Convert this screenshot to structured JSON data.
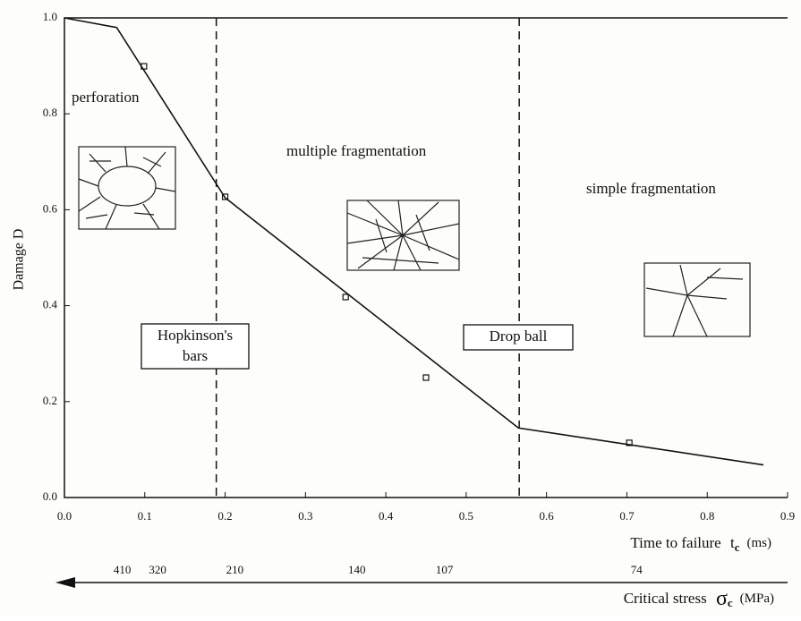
{
  "chart_data": {
    "type": "line",
    "ylabel": "Damage D",
    "xlabel": {
      "text": "Time to failure",
      "symbol": "t",
      "subscript": "c",
      "unit": "(ms)"
    },
    "stress_label": {
      "text": "Critical stress",
      "symbol": "σ",
      "subscript": "c",
      "unit": "(MPa)"
    },
    "xlim": [
      0,
      0.9
    ],
    "ylim": [
      0,
      1
    ],
    "xticks": [
      {
        "value": 0,
        "label": "0.0"
      },
      0.1,
      0.2,
      0.3,
      0.4,
      0.5,
      0.6,
      0.7,
      0.8,
      0.9
    ],
    "yticks": [
      {
        "value": 0,
        "label": "0.0"
      },
      0.2,
      0.4,
      0.6,
      0.8,
      {
        "value": 1,
        "label": "1.0"
      }
    ],
    "stress_ticks": [
      {
        "value": 0.072,
        "label": "410"
      },
      {
        "value": 0.116,
        "label": "320"
      },
      {
        "value": 0.212,
        "label": "210"
      },
      {
        "value": 0.364,
        "label": "140"
      },
      {
        "value": 0.473,
        "label": "107"
      },
      {
        "value": 0.712,
        "label": "74"
      }
    ],
    "line": {
      "color": "#111",
      "x": [
        0,
        0.065,
        0.2,
        0.565,
        0.87
      ],
      "values": [
        1.0,
        0.98,
        0.625,
        0.145,
        0.068
      ]
    },
    "points": {
      "color": "#111",
      "x": [
        0.099,
        0.2,
        0.35,
        0.45,
        0.703
      ],
      "values": [
        0.899,
        0.627,
        0.418,
        0.25,
        0.114
      ]
    },
    "vlines": [
      0.189,
      0.566
    ],
    "annotations": [
      "perforation",
      "multiple fragmentation",
      "simple fragmentation"
    ],
    "boxes": [
      [
        "Hopkinson's",
        "bars"
      ],
      [
        "Drop ball"
      ]
    ]
  }
}
